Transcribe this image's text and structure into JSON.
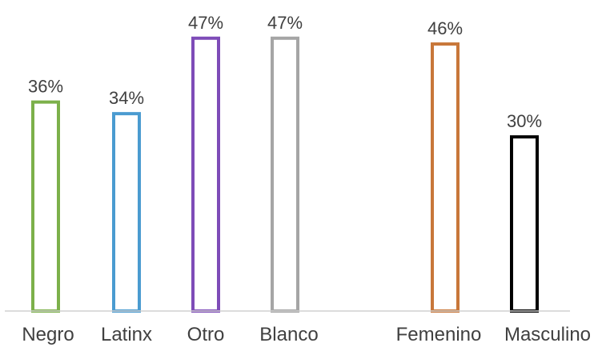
{
  "chart_data": {
    "type": "bar",
    "title": "",
    "xlabel": "",
    "ylabel": "",
    "ylim": [
      0,
      50
    ],
    "grid": false,
    "legend": "none",
    "value_suffix": "%",
    "categories": [
      "Negro",
      "Latinx",
      "Otro",
      "Blanco",
      "Femenino",
      "Masculino"
    ],
    "values": [
      36,
      34,
      47,
      47,
      46,
      30
    ],
    "colors": [
      "#7cb04a",
      "#4a9bd0",
      "#7e4cb8",
      "#a5a5a5",
      "#c8773a",
      "#000000"
    ],
    "data_labels": [
      "36%",
      "34%",
      "47%",
      "47%",
      "46%",
      "30%"
    ],
    "baseline_color": "#d0d0d0"
  }
}
